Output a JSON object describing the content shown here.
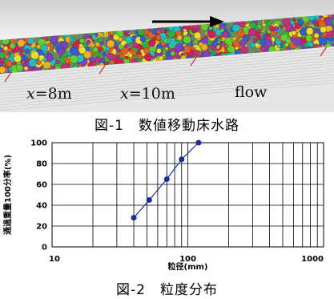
{
  "figure1": {
    "label_x8": {
      "var": "x",
      "rest": "=8m"
    },
    "label_x10": {
      "var": "x",
      "rest": "=10m"
    },
    "label_flow": "flow",
    "caption": "図-1　数値移動床水路",
    "bed_colors": [
      "#e8e030",
      "#f0b020",
      "#d02050",
      "#3060d0",
      "#30b040",
      "#8040c0",
      "#20c0c0",
      "#e06020",
      "#c03080",
      "#60d030"
    ]
  },
  "figure2": {
    "caption": "図-2　粒度分布",
    "chart_data": {
      "type": "line",
      "x_scale": "log",
      "xlim": [
        10,
        1000
      ],
      "ylim": [
        0,
        100
      ],
      "xticks": [
        10,
        100,
        1000
      ],
      "yticks": [
        0,
        20,
        40,
        60,
        80,
        100
      ],
      "xlabel": "粒径(mm)",
      "ylabel": "通過重量100分率(%)",
      "grid": true,
      "legend": "none",
      "series": [
        {
          "x": [
            40,
            52,
            70,
            90,
            120
          ],
          "y": [
            28,
            45,
            65,
            84,
            100
          ]
        }
      ],
      "line_color": "#1a2c9c"
    }
  }
}
